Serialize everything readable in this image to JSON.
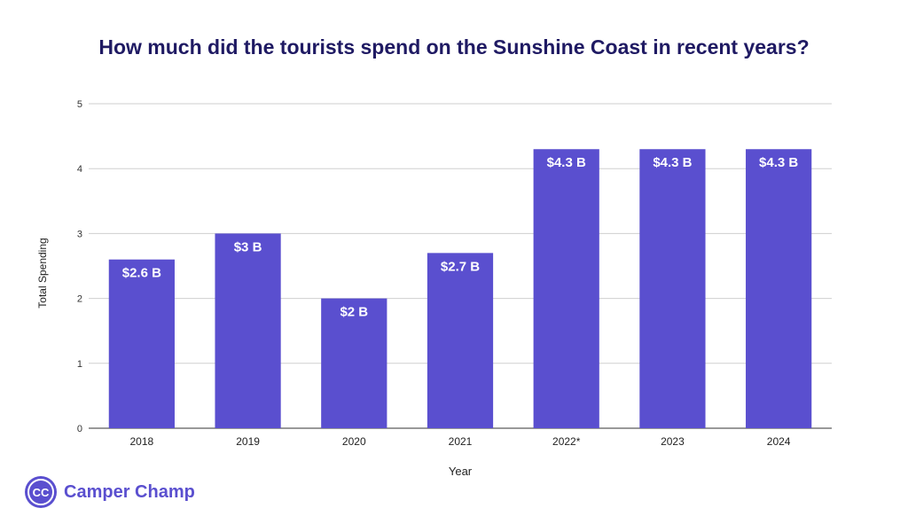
{
  "page": {
    "title": "How much did the tourists spend on the Sunshine Coast in recent years?"
  },
  "brand": {
    "logo_text": "CC",
    "name": "Camper Champ",
    "color": "#5a4fcf"
  },
  "chart_data": {
    "type": "bar",
    "title": "How much did the tourists spend on the Sunshine Coast in recent years?",
    "xlabel": "Year",
    "ylabel": "Total Spending",
    "categories": [
      "2018",
      "2019",
      "2020",
      "2021",
      "2022*",
      "2023",
      "2024"
    ],
    "values": [
      2.6,
      3,
      2,
      2.7,
      4.3,
      4.3,
      4.3
    ],
    "data_labels": [
      "$2.6 B",
      "$3 B",
      "$2 B",
      "$2.7 B",
      "$4.3 B",
      "$4.3 B",
      "$4.3 B"
    ],
    "ylim": [
      0,
      5
    ],
    "yticks": [
      "0",
      "1",
      "2",
      "3",
      "4",
      "5"
    ],
    "grid": true,
    "bar_color": "#5a4fcf",
    "grid_color": "#cfcfcf"
  }
}
